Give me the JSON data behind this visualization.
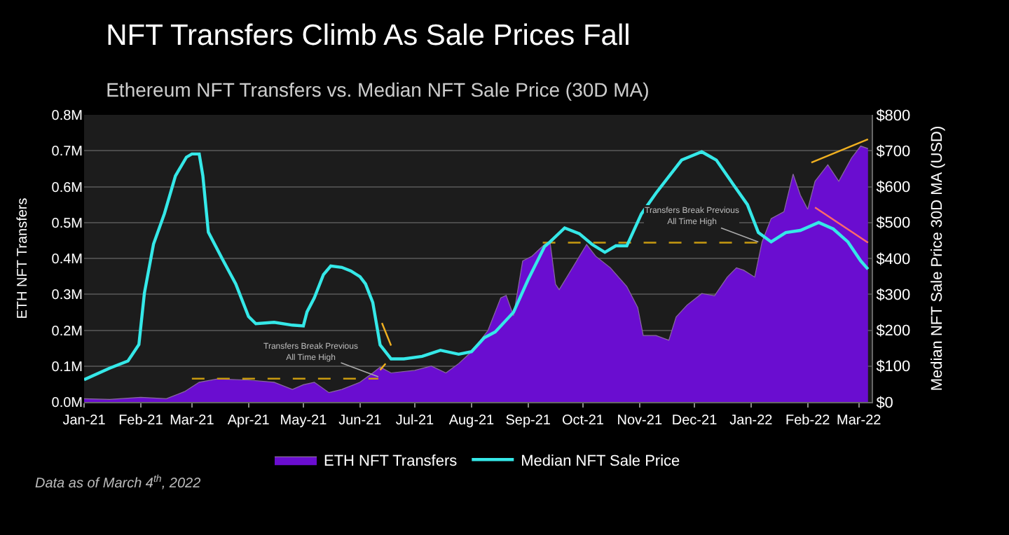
{
  "chart_data": {
    "type": "area",
    "title": "NFT Transfers Climb As Sale Prices Fall",
    "subtitle": "Ethereum NFT Transfers vs. Median NFT Sale Price (30D MA)",
    "ylabel": "ETH NFT Transfers",
    "y2label": "Median NFT Sale Price 30D MA (USD)",
    "xlim": [
      "2021-01-01",
      "2022-03-08"
    ],
    "xticks": [
      {
        "value": "2021-01-01",
        "label": "Jan-21"
      },
      {
        "value": "2021-02-01",
        "label": "Feb-21"
      },
      {
        "value": "2021-03-01",
        "label": "Mar-21"
      },
      {
        "value": "2021-04-01",
        "label": "Apr-21"
      },
      {
        "value": "2021-05-01",
        "label": "May-21"
      },
      {
        "value": "2021-06-01",
        "label": "Jun-21"
      },
      {
        "value": "2021-07-01",
        "label": "Jul-21"
      },
      {
        "value": "2021-08-01",
        "label": "Aug-21"
      },
      {
        "value": "2021-09-01",
        "label": "Sep-21"
      },
      {
        "value": "2021-10-01",
        "label": "Oct-21"
      },
      {
        "value": "2021-11-01",
        "label": "Nov-21"
      },
      {
        "value": "2021-12-01",
        "label": "Dec-21"
      },
      {
        "value": "2022-01-01",
        "label": "Jan-22"
      },
      {
        "value": "2022-02-01",
        "label": "Feb-22"
      },
      {
        "value": "2022-03-01",
        "label": "Mar-22"
      }
    ],
    "ylim": [
      0,
      800000
    ],
    "yticks": [
      {
        "value": 0,
        "label": "0.0M"
      },
      {
        "value": 100000,
        "label": "0.1M"
      },
      {
        "value": 200000,
        "label": "0.2M"
      },
      {
        "value": 300000,
        "label": "0.3M"
      },
      {
        "value": 400000,
        "label": "0.4M"
      },
      {
        "value": 500000,
        "label": "0.5M"
      },
      {
        "value": 600000,
        "label": "0.6M"
      },
      {
        "value": 700000,
        "label": "0.7M"
      },
      {
        "value": 800000,
        "label": "0.8M"
      }
    ],
    "y2lim": [
      0,
      800
    ],
    "y2ticks": [
      {
        "value": 0,
        "label": "$0"
      },
      {
        "value": 100,
        "label": "$100"
      },
      {
        "value": 200,
        "label": "$200"
      },
      {
        "value": 300,
        "label": "$300"
      },
      {
        "value": 400,
        "label": "$400"
      },
      {
        "value": 500,
        "label": "$500"
      },
      {
        "value": 600,
        "label": "$600"
      },
      {
        "value": 700,
        "label": "$700"
      },
      {
        "value": 800,
        "label": "$800"
      }
    ],
    "grid": "y",
    "legend": "bottom",
    "series": [
      {
        "name": "ETH NFT Transfers",
        "color": "#6a0dd0",
        "x": [
          "2021-01-01",
          "2021-01-15",
          "2021-02-01",
          "2021-02-15",
          "2021-02-25",
          "2021-03-05",
          "2021-03-15",
          "2021-04-01",
          "2021-04-15",
          "2021-04-25",
          "2021-05-01",
          "2021-05-07",
          "2021-05-15",
          "2021-05-22",
          "2021-06-01",
          "2021-06-08",
          "2021-06-12",
          "2021-06-18",
          "2021-07-01",
          "2021-07-10",
          "2021-07-18",
          "2021-07-25",
          "2021-08-01",
          "2021-08-10",
          "2021-08-17",
          "2021-08-20",
          "2021-08-24",
          "2021-08-29",
          "2021-09-03",
          "2021-09-10",
          "2021-09-13",
          "2021-09-16",
          "2021-09-18",
          "2021-09-26",
          "2021-10-03",
          "2021-10-08",
          "2021-10-16",
          "2021-10-25",
          "2021-10-31",
          "2021-11-03",
          "2021-11-10",
          "2021-11-17",
          "2021-11-21",
          "2021-11-27",
          "2021-12-05",
          "2021-12-12",
          "2021-12-19",
          "2021-12-24",
          "2021-12-28",
          "2022-01-03",
          "2022-01-07",
          "2022-01-12",
          "2022-01-19",
          "2022-01-24",
          "2022-01-28",
          "2022-02-01",
          "2022-02-05",
          "2022-02-12",
          "2022-02-18",
          "2022-02-25",
          "2022-03-02",
          "2022-03-06"
        ],
        "values": [
          9000,
          7000,
          13000,
          9000,
          29000,
          55000,
          64000,
          61000,
          55000,
          35000,
          48000,
          55000,
          26000,
          35000,
          55000,
          81000,
          97000,
          81000,
          88000,
          100000,
          81000,
          107000,
          140000,
          199000,
          290000,
          297000,
          240000,
          393000,
          406000,
          439000,
          446000,
          328000,
          313000,
          380000,
          439000,
          406000,
          374000,
          322000,
          263000,
          185000,
          185000,
          172000,
          237000,
          270000,
          302000,
          296000,
          348000,
          374000,
          367000,
          348000,
          446000,
          511000,
          530000,
          635000,
          576000,
          537000,
          615000,
          661000,
          615000,
          680000,
          713000,
          706000
        ]
      },
      {
        "name": "Median NFT Sale Price",
        "type": "line",
        "axis": "y2",
        "color": "#35e8e8",
        "x": [
          "2021-01-01",
          "2021-01-15",
          "2021-01-25",
          "2021-01-31",
          "2021-02-03",
          "2021-02-08",
          "2021-02-14",
          "2021-02-20",
          "2021-02-26",
          "2021-03-01",
          "2021-03-05",
          "2021-03-07",
          "2021-03-10",
          "2021-03-18",
          "2021-03-25",
          "2021-04-01",
          "2021-04-05",
          "2021-04-15",
          "2021-04-25",
          "2021-05-01",
          "2021-05-03",
          "2021-05-07",
          "2021-05-12",
          "2021-05-16",
          "2021-05-22",
          "2021-05-27",
          "2021-06-01",
          "2021-06-04",
          "2021-06-08",
          "2021-06-12",
          "2021-06-18",
          "2021-06-25",
          "2021-07-05",
          "2021-07-15",
          "2021-07-25",
          "2021-08-01",
          "2021-08-08",
          "2021-08-14",
          "2021-08-24",
          "2021-09-01",
          "2021-09-10",
          "2021-09-13",
          "2021-09-21",
          "2021-09-29",
          "2021-10-06",
          "2021-10-13",
          "2021-10-19",
          "2021-10-25",
          "2021-11-02",
          "2021-11-10",
          "2021-11-17",
          "2021-11-24",
          "2021-12-05",
          "2021-12-13",
          "2021-12-22",
          "2021-12-30",
          "2022-01-05",
          "2022-01-12",
          "2022-01-20",
          "2022-01-28",
          "2022-02-07",
          "2022-02-15",
          "2022-02-23",
          "2022-03-02",
          "2022-03-06"
        ],
        "values": [
          62,
          94,
          114,
          160,
          303,
          440,
          525,
          630,
          682,
          691,
          691,
          630,
          473,
          395,
          329,
          238,
          218,
          222,
          214,
          212,
          251,
          290,
          355,
          379,
          375,
          365,
          349,
          329,
          277,
          159,
          120,
          120,
          127,
          144,
          133,
          140,
          179,
          195,
          250,
          341,
          433,
          446,
          485,
          469,
          439,
          417,
          435,
          435,
          524,
          582,
          628,
          674,
          697,
          674,
          608,
          550,
          472,
          446,
          472,
          478,
          500,
          482,
          446,
          393,
          370
        ]
      },
      {
        "type": "line",
        "line_style": "dashed",
        "color": "#c89a10",
        "x": [
          "2021-03-01",
          "2021-06-11"
        ],
        "values": [
          65000,
          65000
        ]
      },
      {
        "type": "line",
        "line_style": "dashed",
        "color": "#c89a10",
        "x": [
          "2021-09-09",
          "2022-01-05"
        ],
        "values": [
          444000,
          444000
        ]
      },
      {
        "type": "line",
        "color": "#f0b020",
        "x": [
          "2021-06-13",
          "2021-06-18"
        ],
        "values": [
          220000,
          157000
        ]
      },
      {
        "type": "line",
        "color": "#f0b020",
        "x": [
          "2021-06-12",
          "2021-06-15"
        ],
        "values": [
          89000,
          107000
        ]
      },
      {
        "type": "line",
        "color": "#f0b020",
        "x": [
          "2022-02-03",
          "2022-03-06"
        ],
        "values": [
          667000,
          732000
        ]
      },
      {
        "type": "line",
        "color": "#ff6a6a",
        "x": [
          "2022-02-05",
          "2022-03-06"
        ],
        "values": [
          542000,
          444000
        ]
      }
    ],
    "annotations": [
      {
        "text": "Transfers Break Previous\nAll Time High",
        "x": "2021-06-11",
        "y": 70000
      },
      {
        "text": "Transfers Break Previous\nAll Time High",
        "x": "2022-01-05",
        "y": 446000
      },
      "Data as of March 4$^{th}$, 2022"
    ]
  }
}
